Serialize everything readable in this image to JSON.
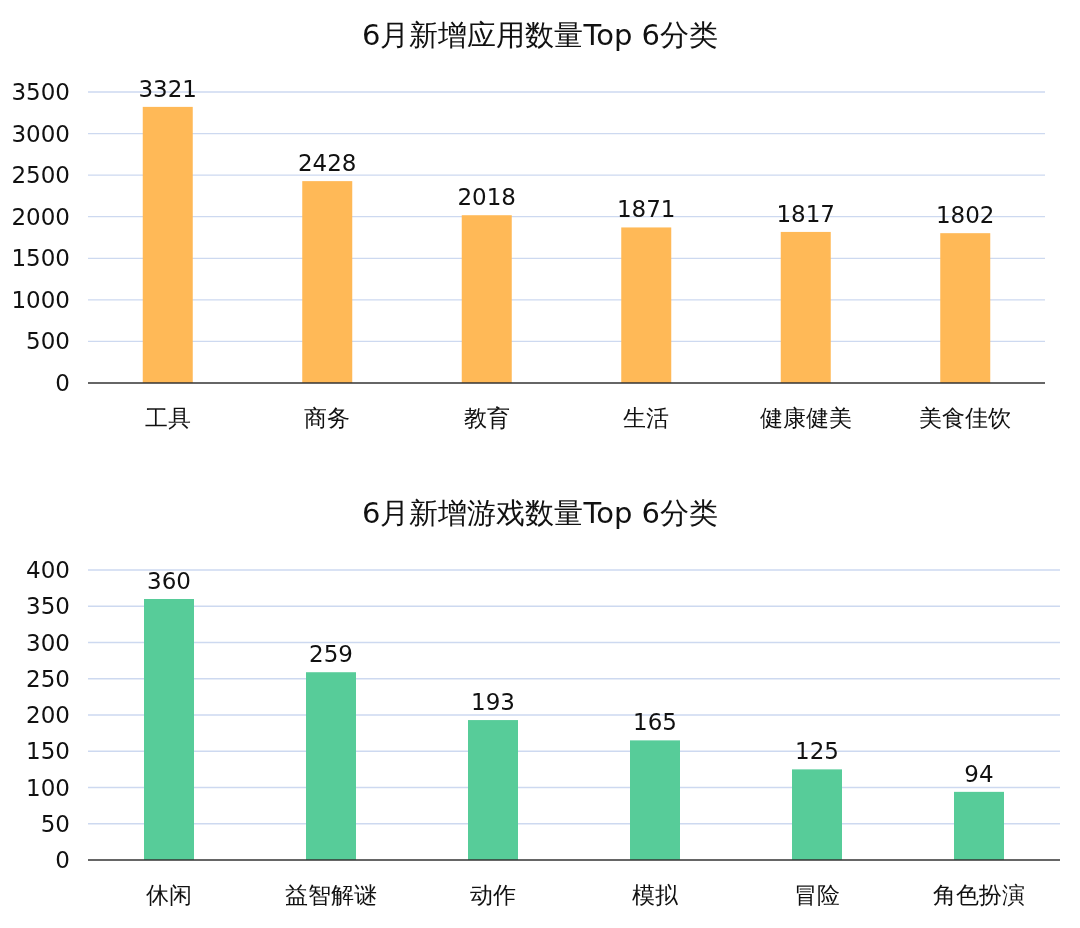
{
  "chart_data": [
    {
      "type": "bar",
      "title": "6月新增应用数量Top 6分类",
      "categories": [
        "工具",
        "商务",
        "教育",
        "生活",
        "健康健美",
        "美食佳饮"
      ],
      "values": [
        3321,
        2428,
        2018,
        1871,
        1817,
        1802
      ],
      "color": "#ffb957",
      "ylim": [
        0,
        3500
      ],
      "yticks": [
        0,
        500,
        1000,
        1500,
        2000,
        2500,
        3000,
        3500
      ],
      "grid": "y",
      "data_labels": true
    },
    {
      "type": "bar",
      "title": "6月新增游戏数量Top 6分类",
      "categories": [
        "休闲",
        "益智解谜",
        "动作",
        "模拟",
        "冒险",
        "角色扮演"
      ],
      "values": [
        360,
        259,
        193,
        165,
        125,
        94
      ],
      "color": "#57cc99",
      "ylim": [
        0,
        400
      ],
      "yticks": [
        0,
        50,
        100,
        150,
        200,
        250,
        300,
        350,
        400
      ],
      "grid": "y",
      "data_labels": true
    }
  ]
}
